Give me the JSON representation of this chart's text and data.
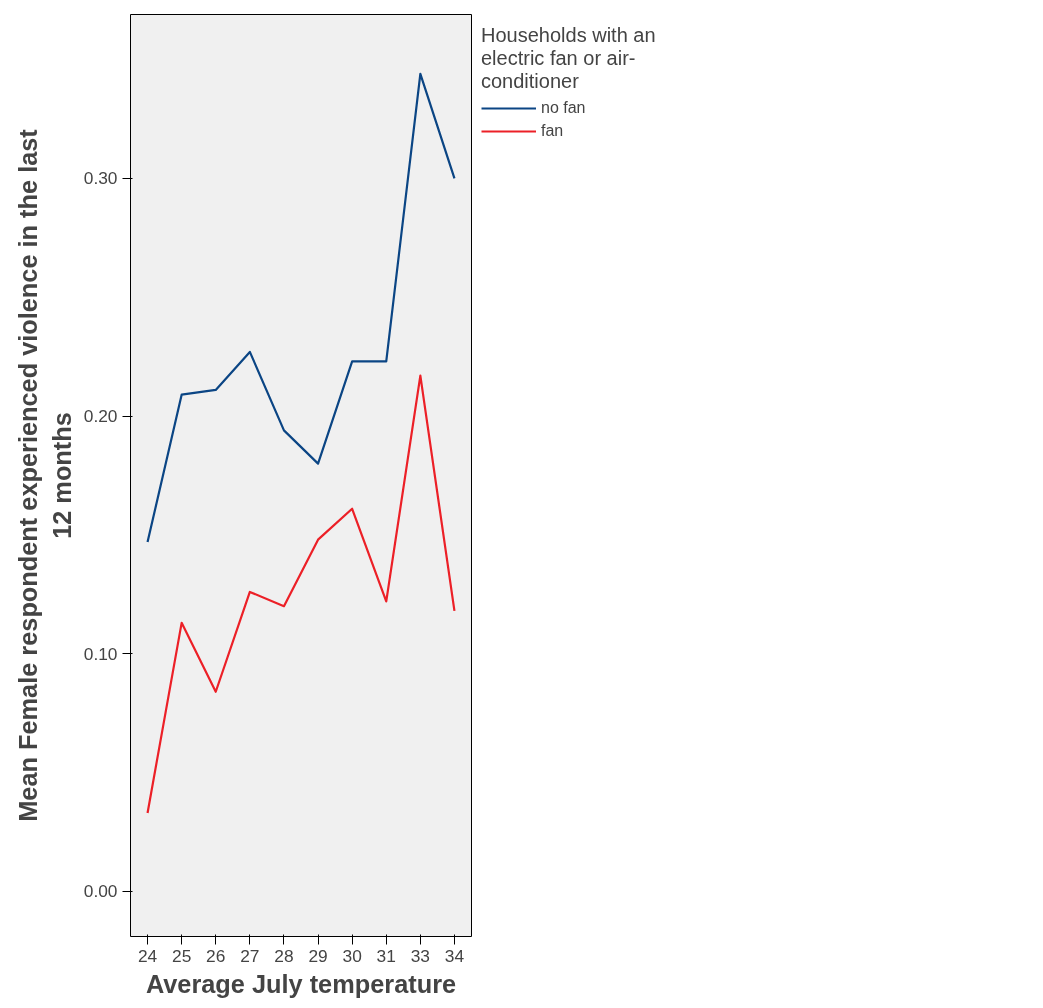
{
  "chart_data": {
    "type": "line",
    "xlabel": "Average July temperature",
    "ylabel": "Mean Female respondent experienced violence in the last 12 months",
    "legend_title": "Households with an electric fan or air-conditioner",
    "categories": [
      "24",
      "25",
      "26",
      "27",
      "28",
      "29",
      "30",
      "31",
      "33",
      "34"
    ],
    "ylim": [
      -0.019,
      0.369
    ],
    "yticks": [
      {
        "value": 0,
        "label": "0.00"
      },
      {
        "value": 0.1,
        "label": "0.10"
      },
      {
        "value": 0.2,
        "label": "0.20"
      },
      {
        "value": 0.3,
        "label": "0.30"
      }
    ],
    "grid": false,
    "legend": "right",
    "marker": "none",
    "line_style": "solid",
    "series": [
      {
        "name": "no fan",
        "color": "#0b4584",
        "values": [
          0.147,
          0.209,
          0.211,
          0.227,
          0.194,
          0.18,
          0.223,
          0.223,
          0.344,
          0.3
        ]
      },
      {
        "name": "fan",
        "color": "#ec2027",
        "values": [
          0.033,
          0.113,
          0.084,
          0.126,
          0.12,
          0.148,
          0.161,
          0.122,
          0.217,
          0.118
        ]
      }
    ]
  }
}
